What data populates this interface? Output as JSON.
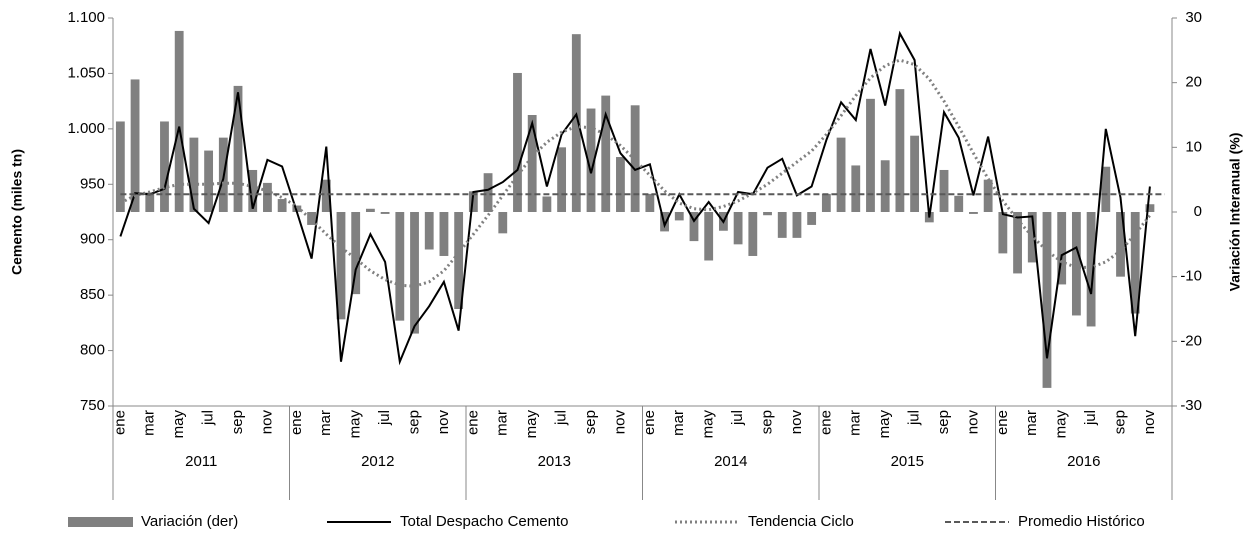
{
  "chart_data": {
    "type": "bar-line",
    "y_label": "Cemento (miles tn)",
    "y2_label": "Variación Interanual (%)",
    "categories": [
      "ene",
      null,
      "mar",
      null,
      "may",
      null,
      "jul",
      null,
      "sep",
      null,
      "nov",
      null,
      "ene",
      null,
      "mar",
      null,
      "may",
      null,
      "jul",
      null,
      "sep",
      null,
      "nov",
      null,
      "ene",
      null,
      "mar",
      null,
      "may",
      null,
      "jul",
      null,
      "sep",
      null,
      "nov",
      null,
      "ene",
      null,
      "mar",
      null,
      "may",
      null,
      "jul",
      null,
      "sep",
      null,
      "nov",
      null,
      "ene",
      null,
      "mar",
      null,
      "may",
      null,
      "jul",
      null,
      "sep",
      null,
      "nov",
      null,
      "ene",
      null,
      "mar",
      null,
      "may",
      null,
      "jul",
      null,
      "sep",
      null,
      "nov",
      null
    ],
    "years": [
      "2011",
      "2012",
      "2013",
      "2014",
      "2015",
      "2016"
    ],
    "ylim": [
      750,
      1100
    ],
    "yticks": [
      {
        "value": 1100,
        "label": "1.100"
      },
      {
        "value": 1050,
        "label": "1.050"
      },
      {
        "value": 1000,
        "label": "1.000"
      },
      950,
      900,
      850,
      800,
      750
    ],
    "y2lim": [
      -30,
      30
    ],
    "y2ticks": [
      30,
      20,
      10,
      0,
      -10,
      -20,
      -30
    ],
    "series": [
      {
        "name": "Variación (der)",
        "kind": "bar",
        "axis": "y2",
        "color": "#808080",
        "values": [
          14,
          20.5,
          3,
          14,
          28,
          11.5,
          9.5,
          11.5,
          19.5,
          6.5,
          4.5,
          2,
          1,
          -2,
          5,
          -16.6,
          -12.7,
          0.5,
          -0.3,
          -16.8,
          -18.8,
          -5.8,
          -6.8,
          -15,
          3.2,
          6,
          -3.3,
          21.5,
          15,
          2.4,
          10,
          27.5,
          16,
          18,
          8.5,
          16.5,
          2.8,
          -3,
          -1.3,
          -4.5,
          -7.5,
          -2.9,
          -5,
          -6.8,
          -0.5,
          -4,
          -4,
          -2,
          2.8,
          11.5,
          7.2,
          17.5,
          8,
          19,
          11.8,
          -1.6,
          6.5,
          2.5,
          -0.3,
          5,
          -6.4,
          -9.5,
          -7.8,
          -27.2,
          -11.2,
          -16,
          -17.7,
          7,
          -10,
          -15.7,
          1.2,
          null
        ]
      },
      {
        "name": "Total Despacho Cemento",
        "kind": "line",
        "style": "solid",
        "color": "#000000",
        "values": [
          903,
          942,
          941,
          946,
          1002,
          928,
          915,
          955,
          1033,
          928,
          972,
          966,
          925,
          883,
          984,
          790,
          873,
          905,
          880,
          790,
          822,
          840,
          862,
          818,
          943,
          945,
          952,
          963,
          1005,
          948,
          995,
          1013,
          960,
          1013,
          978,
          963,
          968,
          913,
          941,
          917,
          934,
          916,
          943,
          941,
          965,
          973,
          940,
          948,
          990,
          1024,
          1008,
          1072,
          1021,
          1086,
          1062,
          920,
          1015,
          992,
          940,
          993,
          923,
          920,
          921,
          793,
          886,
          893,
          851,
          1000,
          938,
          813,
          948,
          null
        ]
      },
      {
        "name": "Tendencia Ciclo",
        "kind": "line",
        "style": "dotted",
        "color": "#808080",
        "values": [
          933,
          940,
          943,
          947,
          950,
          950,
          950,
          951,
          951,
          948,
          944,
          938,
          930,
          918,
          905,
          893,
          883,
          872,
          864,
          859,
          858,
          862,
          872,
          888,
          905,
          922,
          940,
          958,
          975,
          988,
          997,
          1002,
          1001,
          995,
          985,
          972,
          958,
          944,
          933,
          928,
          927,
          930,
          935,
          942,
          950,
          960,
          970,
          980,
          995,
          1012,
          1030,
          1046,
          1057,
          1062,
          1058,
          1045,
          1025,
          1002,
          978,
          955,
          935,
          918,
          903,
          890,
          880,
          875,
          875,
          880,
          890,
          905,
          922,
          null
        ]
      },
      {
        "name": "Promedio Histórico",
        "kind": "line",
        "style": "dashed",
        "color": "#595959",
        "values": [
          941,
          941,
          941,
          941,
          941,
          941,
          941,
          941,
          941,
          941,
          941,
          941,
          941,
          941,
          941,
          941,
          941,
          941,
          941,
          941,
          941,
          941,
          941,
          941,
          941,
          941,
          941,
          941,
          941,
          941,
          941,
          941,
          941,
          941,
          941,
          941,
          941,
          941,
          941,
          941,
          941,
          941,
          941,
          941,
          941,
          941,
          941,
          941,
          941,
          941,
          941,
          941,
          941,
          941,
          941,
          941,
          941,
          941,
          941,
          941,
          941,
          941,
          941,
          941,
          941,
          941,
          941,
          941,
          941,
          941,
          941,
          941
        ]
      }
    ]
  }
}
